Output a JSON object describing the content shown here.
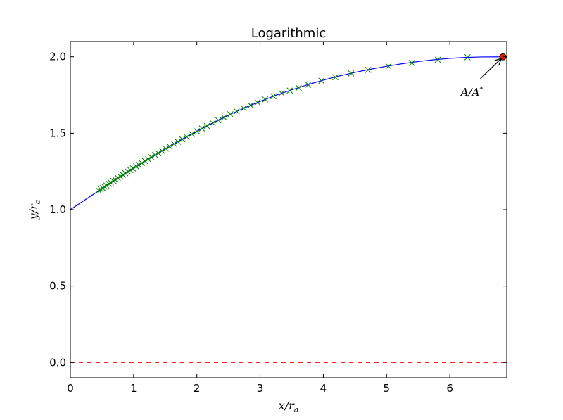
{
  "chart_data": {
    "type": "line",
    "title": "Logarithmic",
    "xlabel": "x/r_a",
    "ylabel": "y/r_a",
    "xlim": [
      0,
      6.9
    ],
    "ylim": [
      -0.1,
      2.1
    ],
    "x_ticks": [
      {
        "value": 0,
        "label": "0"
      },
      {
        "value": 1,
        "label": "1"
      },
      {
        "value": 2,
        "label": "2"
      },
      {
        "value": 3,
        "label": "3"
      },
      {
        "value": 4,
        "label": "4"
      },
      {
        "value": 5,
        "label": "5"
      },
      {
        "value": 6,
        "label": "6"
      }
    ],
    "y_ticks": [
      {
        "value": 0.0,
        "label": "0.0"
      },
      {
        "value": 0.5,
        "label": "0.5"
      },
      {
        "value": 1.0,
        "label": "1.0"
      },
      {
        "value": 1.5,
        "label": "1.5"
      },
      {
        "value": 2.0,
        "label": "2.0"
      }
    ],
    "grid": false,
    "series": [
      {
        "style": "line",
        "color": "#0000ff",
        "x": [
          0,
          0.25,
          0.5,
          0.75,
          1.0,
          1.25,
          1.5,
          1.75,
          2.0,
          2.25,
          2.5,
          2.75,
          3.0,
          3.25,
          3.5,
          3.75,
          4.0,
          4.25,
          4.5,
          4.75,
          5.0,
          5.25,
          5.5,
          5.75,
          6.0,
          6.25,
          6.5,
          6.84
        ],
        "y": [
          1.0,
          1.069,
          1.137,
          1.204,
          1.27,
          1.334,
          1.396,
          1.456,
          1.513,
          1.567,
          1.618,
          1.665,
          1.708,
          1.748,
          1.784,
          1.817,
          1.847,
          1.874,
          1.898,
          1.919,
          1.938,
          1.955,
          1.969,
          1.981,
          1.99,
          1.996,
          1.999,
          2.0
        ]
      },
      {
        "style": "markers",
        "marker": "x",
        "color": "#008000",
        "x": [
          0.45,
          0.48,
          0.51,
          0.54,
          0.57,
          0.61,
          0.64,
          0.68,
          0.71,
          0.75,
          0.79,
          0.83,
          0.87,
          0.91,
          0.95,
          0.99,
          1.04,
          1.08,
          1.13,
          1.18,
          1.23,
          1.28,
          1.34,
          1.39,
          1.45,
          1.51,
          1.57,
          1.64,
          1.7,
          1.77,
          1.84,
          1.92,
          2.0,
          2.08,
          2.16,
          2.25,
          2.34,
          2.43,
          2.53,
          2.63,
          2.74,
          2.85,
          2.96,
          3.08,
          3.21,
          3.34,
          3.47,
          3.61,
          3.76,
          3.97,
          4.19,
          4.44,
          4.71,
          5.03,
          5.4,
          5.81,
          6.28
        ],
        "y": [
          1.125,
          1.133,
          1.141,
          1.15,
          1.158,
          1.169,
          1.177,
          1.188,
          1.196,
          1.207,
          1.217,
          1.228,
          1.238,
          1.249,
          1.259,
          1.27,
          1.283,
          1.293,
          1.305,
          1.318,
          1.33,
          1.343,
          1.358,
          1.37,
          1.385,
          1.399,
          1.413,
          1.43,
          1.444,
          1.461,
          1.476,
          1.495,
          1.513,
          1.531,
          1.547,
          1.567,
          1.585,
          1.603,
          1.624,
          1.643,
          1.663,
          1.683,
          1.702,
          1.721,
          1.742,
          1.762,
          1.779,
          1.797,
          1.817,
          1.843,
          1.866,
          1.891,
          1.914,
          1.938,
          1.96,
          1.981,
          1.997
        ]
      },
      {
        "style": "hline",
        "color": "#ff0000",
        "dash": "dashed",
        "y": 0.0
      },
      {
        "style": "point",
        "marker": "o",
        "color": "#cc2200",
        "x": 6.84,
        "y": 2.0
      }
    ],
    "annotations": [
      {
        "text": "A/A*",
        "x": 6.35,
        "y": 1.82,
        "arrow_to_x": 6.84,
        "arrow_to_y": 2.0
      }
    ]
  }
}
